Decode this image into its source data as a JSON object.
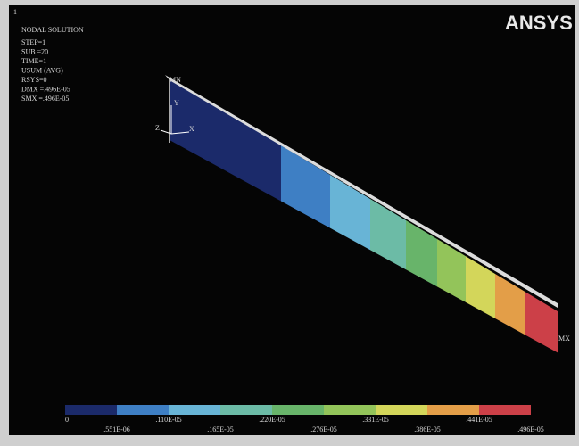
{
  "window_number": "1",
  "info": {
    "title": "NODAL SOLUTION",
    "lines": [
      "STEP=1",
      "SUB =20",
      "TIME=1",
      "USUM      (AVG)",
      "RSYS=0",
      "DMX =.496E-05",
      "SMX =.496E-05"
    ]
  },
  "logo": "ANSYS",
  "triad": {
    "y": "Y",
    "x": "X",
    "z": "Z"
  },
  "markers": {
    "min": "MN",
    "max": "MX"
  },
  "legend": {
    "colors": [
      "#1b2a6a",
      "#3e7fc4",
      "#68b4d6",
      "#6cbba6",
      "#68b46a",
      "#93c45a",
      "#d3d65a",
      "#e39e48",
      "#cc4048"
    ],
    "labels": [
      "0",
      ".551E-06",
      ".110E-05",
      ".165E-05",
      ".220E-05",
      ".276E-05",
      ".331E-05",
      ".386E-05",
      ".441E-05",
      ".496E-05"
    ]
  }
}
